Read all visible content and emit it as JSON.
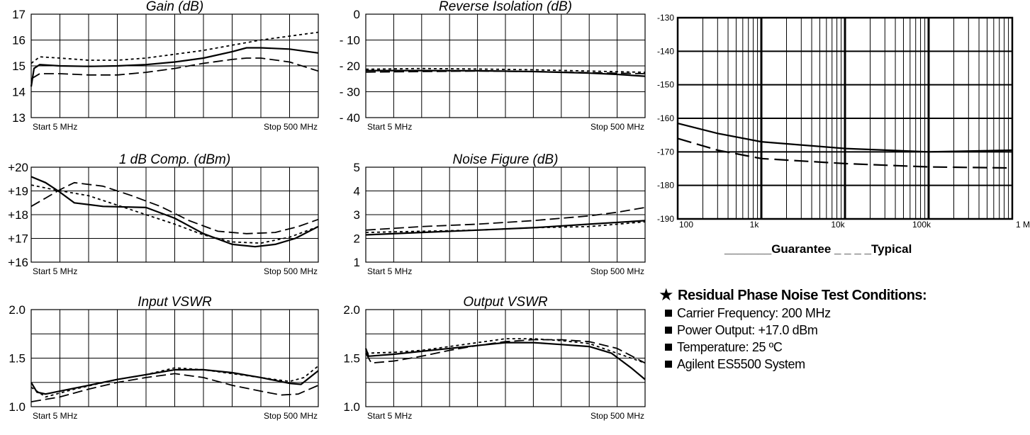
{
  "chart_data": [
    {
      "type": "line",
      "title": "Gain (dB)",
      "y_ticks": [
        "17",
        "16",
        "15",
        "14",
        "13"
      ],
      "ylim": [
        13,
        17
      ],
      "x_start_label": "Start  5  MHz",
      "x_stop_label": "Stop  500 MHz",
      "series": [
        {
          "style": "solid",
          "points": [
            [
              0,
              14.2
            ],
            [
              0.01,
              14.9
            ],
            [
              0.03,
              15.05
            ],
            [
              0.1,
              15.0
            ],
            [
              0.2,
              14.98
            ],
            [
              0.3,
              15.0
            ],
            [
              0.4,
              15.05
            ],
            [
              0.5,
              15.15
            ],
            [
              0.6,
              15.3
            ],
            [
              0.7,
              15.55
            ],
            [
              0.75,
              15.7
            ],
            [
              0.8,
              15.7
            ],
            [
              0.9,
              15.65
            ],
            [
              1.0,
              15.5
            ]
          ]
        },
        {
          "style": "dotted",
          "points": [
            [
              0,
              15.1
            ],
            [
              0.03,
              15.35
            ],
            [
              0.1,
              15.3
            ],
            [
              0.2,
              15.22
            ],
            [
              0.3,
              15.22
            ],
            [
              0.4,
              15.3
            ],
            [
              0.5,
              15.45
            ],
            [
              0.6,
              15.6
            ],
            [
              0.7,
              15.8
            ],
            [
              0.8,
              16.0
            ],
            [
              0.9,
              16.15
            ],
            [
              1.0,
              16.3
            ]
          ]
        },
        {
          "style": "dashed",
          "points": [
            [
              0,
              14.5
            ],
            [
              0.03,
              14.7
            ],
            [
              0.1,
              14.7
            ],
            [
              0.2,
              14.65
            ],
            [
              0.3,
              14.65
            ],
            [
              0.4,
              14.75
            ],
            [
              0.5,
              14.9
            ],
            [
              0.6,
              15.1
            ],
            [
              0.7,
              15.25
            ],
            [
              0.75,
              15.3
            ],
            [
              0.8,
              15.3
            ],
            [
              0.9,
              15.15
            ],
            [
              1.0,
              14.8
            ]
          ]
        }
      ]
    },
    {
      "type": "line",
      "title": "Reverse Isolation (dB)",
      "y_ticks": [
        "0",
        "- 10",
        "- 20",
        "- 30",
        "- 40"
      ],
      "ylim": [
        -40,
        0
      ],
      "x_start_label": "Start  5  MHz",
      "x_stop_label": "Stop  500 MHz",
      "series": [
        {
          "style": "solid",
          "points": [
            [
              0,
              -21.8
            ],
            [
              0.2,
              -21.8
            ],
            [
              0.4,
              -21.9
            ],
            [
              0.6,
              -22.2
            ],
            [
              0.8,
              -22.8
            ],
            [
              0.9,
              -23.3
            ],
            [
              1.0,
              -24.0
            ]
          ]
        },
        {
          "style": "dotted",
          "points": [
            [
              0,
              -21.3
            ],
            [
              0.2,
              -21.0
            ],
            [
              0.4,
              -21.2
            ],
            [
              0.6,
              -21.5
            ],
            [
              0.8,
              -22.0
            ],
            [
              1.0,
              -22.5
            ]
          ]
        },
        {
          "style": "dashed",
          "points": [
            [
              0,
              -22.4
            ],
            [
              0.2,
              -22.2
            ],
            [
              0.4,
              -22.0
            ],
            [
              0.6,
              -22.2
            ],
            [
              0.8,
              -22.6
            ],
            [
              1.0,
              -23.0
            ]
          ]
        }
      ]
    },
    {
      "type": "line",
      "title": "1 dB Comp. (dBm)",
      "y_ticks": [
        "+20",
        "+19",
        "+18",
        "+17",
        "+16"
      ],
      "ylim": [
        16,
        20
      ],
      "x_start_label": "Start  5  MHz",
      "x_stop_label": "Stop  500 MHz",
      "series": [
        {
          "style": "solid",
          "points": [
            [
              0,
              19.6
            ],
            [
              0.05,
              19.35
            ],
            [
              0.1,
              18.95
            ],
            [
              0.15,
              18.5
            ],
            [
              0.25,
              18.35
            ],
            [
              0.4,
              18.3
            ],
            [
              0.5,
              17.85
            ],
            [
              0.6,
              17.2
            ],
            [
              0.7,
              16.75
            ],
            [
              0.78,
              16.65
            ],
            [
              0.85,
              16.75
            ],
            [
              0.92,
              17.0
            ],
            [
              1.0,
              17.5
            ]
          ]
        },
        {
          "style": "dotted",
          "points": [
            [
              0,
              19.25
            ],
            [
              0.08,
              19.05
            ],
            [
              0.2,
              18.8
            ],
            [
              0.3,
              18.4
            ],
            [
              0.4,
              18.0
            ],
            [
              0.5,
              17.6
            ],
            [
              0.6,
              17.15
            ],
            [
              0.7,
              16.85
            ],
            [
              0.8,
              16.8
            ],
            [
              0.9,
              17.05
            ],
            [
              1.0,
              17.5
            ]
          ]
        },
        {
          "style": "dashed",
          "points": [
            [
              0,
              18.35
            ],
            [
              0.05,
              18.7
            ],
            [
              0.1,
              19.05
            ],
            [
              0.15,
              19.35
            ],
            [
              0.25,
              19.2
            ],
            [
              0.35,
              18.8
            ],
            [
              0.45,
              18.35
            ],
            [
              0.55,
              17.75
            ],
            [
              0.65,
              17.3
            ],
            [
              0.75,
              17.2
            ],
            [
              0.85,
              17.25
            ],
            [
              0.93,
              17.5
            ],
            [
              1.0,
              17.8
            ]
          ]
        }
      ]
    },
    {
      "type": "line",
      "title": "Noise Figure (dB)",
      "y_ticks": [
        "5",
        "4",
        "3",
        "2",
        "1"
      ],
      "ylim": [
        1,
        5
      ],
      "x_start_label": "Start  5  MHz",
      "x_stop_label": "Stop  500 MHz",
      "series": [
        {
          "style": "solid",
          "points": [
            [
              0,
              2.15
            ],
            [
              0.2,
              2.25
            ],
            [
              0.4,
              2.35
            ],
            [
              0.6,
              2.45
            ],
            [
              0.8,
              2.6
            ],
            [
              1.0,
              2.75
            ]
          ]
        },
        {
          "style": "dotted",
          "points": [
            [
              0,
              2.25
            ],
            [
              0.2,
              2.3
            ],
            [
              0.4,
              2.35
            ],
            [
              0.6,
              2.45
            ],
            [
              0.8,
              2.5
            ],
            [
              1.0,
              2.7
            ]
          ]
        },
        {
          "style": "dashed",
          "points": [
            [
              0,
              2.35
            ],
            [
              0.2,
              2.5
            ],
            [
              0.4,
              2.6
            ],
            [
              0.6,
              2.75
            ],
            [
              0.8,
              2.95
            ],
            [
              0.9,
              3.1
            ],
            [
              1.0,
              3.3
            ]
          ]
        }
      ]
    },
    {
      "type": "line",
      "title": "Input VSWR",
      "y_ticks": [
        "2.0",
        "1.5",
        "1.0"
      ],
      "ylim": [
        1.0,
        2.0
      ],
      "x_start_label": "Start  5  MHz",
      "x_stop_label": "Stop  500 MHz",
      "series": [
        {
          "style": "solid",
          "points": [
            [
              0,
              1.25
            ],
            [
              0.02,
              1.15
            ],
            [
              0.05,
              1.13
            ],
            [
              0.1,
              1.16
            ],
            [
              0.2,
              1.22
            ],
            [
              0.3,
              1.28
            ],
            [
              0.4,
              1.33
            ],
            [
              0.5,
              1.38
            ],
            [
              0.6,
              1.38
            ],
            [
              0.7,
              1.35
            ],
            [
              0.8,
              1.3
            ],
            [
              0.9,
              1.24
            ],
            [
              0.94,
              1.23
            ],
            [
              1.0,
              1.37
            ]
          ]
        },
        {
          "style": "dotted",
          "points": [
            [
              0,
              1.2
            ],
            [
              0.05,
              1.1
            ],
            [
              0.15,
              1.18
            ],
            [
              0.3,
              1.28
            ],
            [
              0.4,
              1.33
            ],
            [
              0.5,
              1.4
            ],
            [
              0.6,
              1.38
            ],
            [
              0.7,
              1.34
            ],
            [
              0.8,
              1.3
            ],
            [
              0.9,
              1.26
            ],
            [
              0.95,
              1.3
            ],
            [
              1.0,
              1.42
            ]
          ]
        },
        {
          "style": "dashed",
          "points": [
            [
              0,
              1.05
            ],
            [
              0.1,
              1.1
            ],
            [
              0.2,
              1.18
            ],
            [
              0.3,
              1.25
            ],
            [
              0.4,
              1.3
            ],
            [
              0.5,
              1.34
            ],
            [
              0.6,
              1.3
            ],
            [
              0.7,
              1.22
            ],
            [
              0.8,
              1.16
            ],
            [
              0.87,
              1.12
            ],
            [
              0.93,
              1.13
            ],
            [
              1.0,
              1.22
            ]
          ]
        }
      ]
    },
    {
      "type": "line",
      "title": "Output VSWR",
      "y_ticks": [
        "2.0",
        "1.5",
        "1.0"
      ],
      "ylim": [
        1.0,
        2.0
      ],
      "x_start_label": "Start  5  MHz",
      "x_stop_label": "Stop  500 MHz",
      "series": [
        {
          "style": "solid",
          "points": [
            [
              0,
              1.6
            ],
            [
              0.01,
              1.52
            ],
            [
              0.1,
              1.54
            ],
            [
              0.2,
              1.57
            ],
            [
              0.3,
              1.6
            ],
            [
              0.4,
              1.63
            ],
            [
              0.5,
              1.66
            ],
            [
              0.6,
              1.66
            ],
            [
              0.7,
              1.64
            ],
            [
              0.8,
              1.62
            ],
            [
              0.88,
              1.55
            ],
            [
              0.95,
              1.4
            ],
            [
              1.0,
              1.28
            ]
          ]
        },
        {
          "style": "dotted",
          "points": [
            [
              0,
              1.55
            ],
            [
              0.1,
              1.56
            ],
            [
              0.2,
              1.58
            ],
            [
              0.3,
              1.62
            ],
            [
              0.4,
              1.66
            ],
            [
              0.5,
              1.7
            ],
            [
              0.6,
              1.7
            ],
            [
              0.7,
              1.68
            ],
            [
              0.8,
              1.65
            ],
            [
              0.9,
              1.55
            ],
            [
              1.0,
              1.45
            ]
          ]
        },
        {
          "style": "dashed",
          "points": [
            [
              0,
              1.55
            ],
            [
              0.02,
              1.45
            ],
            [
              0.1,
              1.47
            ],
            [
              0.2,
              1.52
            ],
            [
              0.3,
              1.58
            ],
            [
              0.4,
              1.63
            ],
            [
              0.5,
              1.67
            ],
            [
              0.6,
              1.69
            ],
            [
              0.7,
              1.69
            ],
            [
              0.8,
              1.67
            ],
            [
              0.9,
              1.6
            ],
            [
              1.0,
              1.45
            ]
          ]
        }
      ]
    },
    {
      "type": "line",
      "title": "",
      "scale_x": "log",
      "xlim": [
        100,
        1000000
      ],
      "ylim": [
        -190,
        -130
      ],
      "x_ticks": [
        {
          "v": 100,
          "label": "100"
        },
        {
          "v": 1000,
          "label": "1k"
        },
        {
          "v": 10000,
          "label": "10k"
        },
        {
          "v": 100000,
          "label": "100k"
        },
        {
          "v": 1000000,
          "label": "1 M"
        }
      ],
      "y_ticks": [
        {
          "v": -130,
          "label": "-130"
        },
        {
          "v": -140,
          "label": "-140"
        },
        {
          "v": -150,
          "label": "-150"
        },
        {
          "v": -160,
          "label": "-160"
        },
        {
          "v": -170,
          "label": "-170"
        },
        {
          "v": -180,
          "label": "-180"
        },
        {
          "v": -190,
          "label": "-190"
        }
      ],
      "series": [
        {
          "name": "Guarantee",
          "style": "solid",
          "points": [
            [
              100,
              -161.5
            ],
            [
              300,
              -164.5
            ],
            [
              1000,
              -167
            ],
            [
              10000,
              -169
            ],
            [
              100000,
              -170
            ],
            [
              1000000,
              -169.5
            ]
          ]
        },
        {
          "name": "Typical",
          "style": "dashed",
          "points": [
            [
              100,
              -166
            ],
            [
              300,
              -169.5
            ],
            [
              1000,
              -172
            ],
            [
              10000,
              -173.5
            ],
            [
              100000,
              -174.5
            ],
            [
              1000000,
              -174.8
            ]
          ]
        }
      ],
      "legend": {
        "guarantee_prefix": "_______",
        "guarantee_label": "Guarantee",
        "typical_prefix": "_ _ _ _",
        "typical_label": "Typical"
      }
    }
  ],
  "conditions": {
    "star": "★",
    "heading": "Residual Phase Noise Test Conditions:",
    "bullet": "■",
    "items": [
      "Carrier Frequency: 200 MHz",
      "Power Output: +17.0 dBm",
      "Temperature: 25 ºC",
      "Agilent ES5500 System"
    ]
  }
}
